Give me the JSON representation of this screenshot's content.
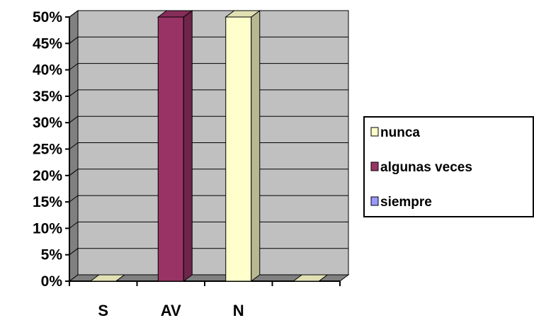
{
  "chart_data": {
    "type": "bar",
    "categories": [
      "S",
      "AV",
      "N",
      ""
    ],
    "series": [
      {
        "name": "nunca",
        "color": "#FFFFCC",
        "values": [
          0,
          0,
          50,
          0
        ]
      },
      {
        "name": "algunas veces",
        "color": "#993366",
        "values": [
          0,
          50,
          0,
          0
        ]
      },
      {
        "name": "siempre",
        "color": "#9999FF",
        "values": [
          0,
          0,
          0,
          0
        ]
      }
    ],
    "ylim": [
      0,
      50
    ],
    "ytick_labels": [
      "0%",
      "5%",
      "10%",
      "15%",
      "20%",
      "25%",
      "30%",
      "35%",
      "40%",
      "45%",
      "50%"
    ],
    "grid": true,
    "legend_position": "right",
    "wall_color": "#C0C0C0",
    "floor_color": "#808080"
  }
}
